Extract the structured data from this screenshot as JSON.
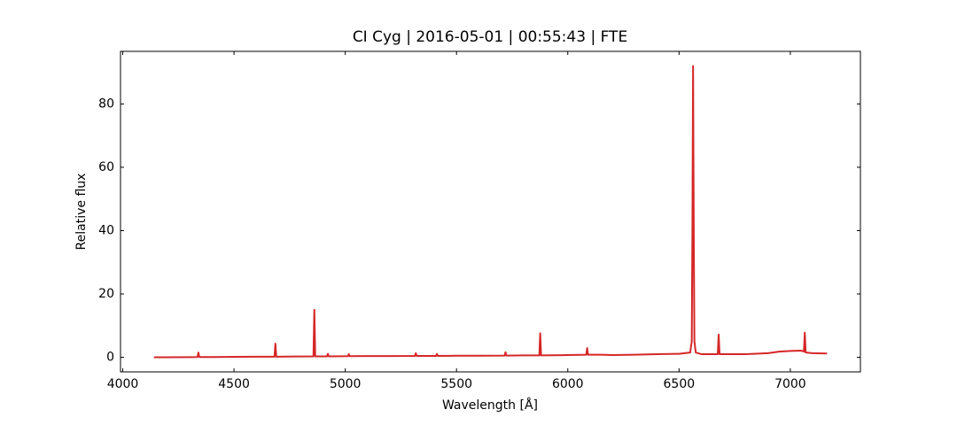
{
  "chart_data": {
    "type": "line",
    "title": "CI Cyg | 2016-05-01 | 00:55:43 | FTE",
    "x_label": "Wavelength [Å]",
    "y_label": "Relative flux",
    "x": [
      4140,
      4200,
      4300,
      4336,
      4340,
      4344,
      4400,
      4500,
      4600,
      4682,
      4686,
      4690,
      4780,
      4857,
      4861,
      4865,
      4918,
      4922,
      4926,
      5012,
      5016,
      5020,
      5100,
      5200,
      5313,
      5317,
      5321,
      5408,
      5412,
      5416,
      5500,
      5600,
      5716,
      5720,
      5724,
      5800,
      5872,
      5876,
      5880,
      6000,
      6083,
      6087,
      6091,
      6150,
      6200,
      6300,
      6400,
      6500,
      6550,
      6557,
      6560,
      6563,
      6566,
      6569,
      6575,
      6600,
      6674,
      6678,
      6682,
      6800,
      6900,
      6950,
      7000,
      7050,
      7061,
      7065,
      7069,
      7100,
      7165
    ],
    "series": [
      {
        "color": "#d62728",
        "values": [
          0.0,
          0.0,
          0.05,
          0.1,
          1.5,
          0.1,
          0.1,
          0.15,
          0.2,
          0.2,
          4.3,
          0.2,
          0.25,
          0.3,
          15,
          0.3,
          0.3,
          1.1,
          0.3,
          0.35,
          1,
          0.35,
          0.4,
          0.4,
          0.45,
          1.3,
          0.45,
          0.45,
          1.1,
          0.45,
          0.5,
          0.5,
          0.55,
          1.6,
          0.55,
          0.6,
          0.6,
          7.6,
          0.6,
          0.7,
          0.8,
          2.9,
          0.8,
          0.8,
          0.7,
          0.8,
          1.0,
          1.1,
          1.5,
          5,
          40,
          92,
          40,
          5,
          1.5,
          1.0,
          1.0,
          7.2,
          1.0,
          1.0,
          1.3,
          1.8,
          2.0,
          2.1,
          1.8,
          7.8,
          1.5,
          1.3,
          1.2
        ]
      }
    ],
    "xlim": [
      3990,
      7315
    ],
    "ylim": [
      -4.6,
      96.6
    ],
    "xticks": [
      4000,
      4500,
      5000,
      5500,
      6000,
      6500,
      7000
    ],
    "yticks": [
      0,
      20,
      40,
      60,
      80
    ]
  }
}
